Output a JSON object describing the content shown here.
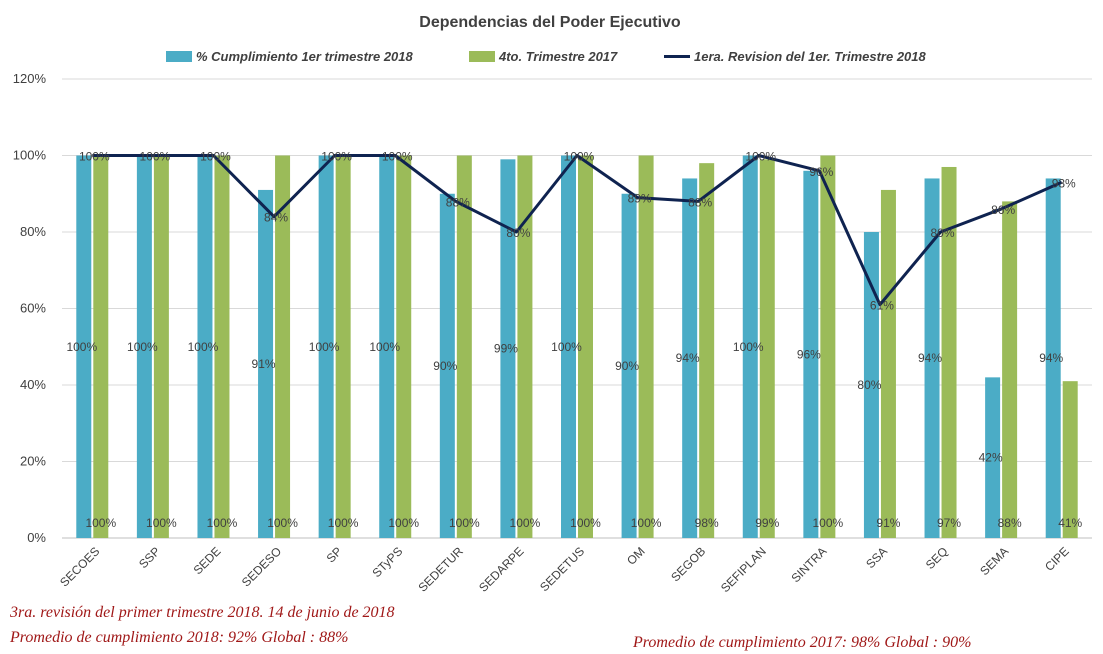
{
  "chart_data": {
    "type": "bar",
    "title": "Dependencias del Poder Ejecutivo",
    "xlabel": "",
    "ylabel": "",
    "ylim": [
      0,
      1.2
    ],
    "yticks": [
      0,
      0.2,
      0.4,
      0.6,
      0.8,
      1.0,
      1.2
    ],
    "ytick_labels": [
      "0%",
      "20%",
      "40%",
      "60%",
      "80%",
      "100%",
      "120%"
    ],
    "grid": true,
    "legend_position": "top",
    "categories": [
      "SECOES",
      "SSP",
      "SEDE",
      "SEDESO",
      "SP",
      "STyPS",
      "SEDETUR",
      "SEDARPE",
      "SEDETUS",
      "OM",
      "SEGOB",
      "SEFIPLAN",
      "SINTRA",
      "SSA",
      "SEQ",
      "SEMA",
      "CIPE"
    ],
    "series": [
      {
        "name": "% Cumplimiento 1er trimestre 2018",
        "kind": "bar",
        "color": "#4bacc6",
        "values": [
          1.0,
          1.0,
          1.0,
          0.91,
          1.0,
          1.0,
          0.9,
          0.99,
          1.0,
          0.9,
          0.94,
          1.0,
          0.96,
          0.8,
          0.94,
          0.42,
          0.94
        ],
        "labels": [
          "100%",
          "100%",
          "100%",
          "91%",
          "100%",
          "100%",
          "90%",
          "99%",
          "100%",
          "90%",
          "94%",
          "100%",
          "96%",
          "80%",
          "94%",
          "42%",
          "94%"
        ]
      },
      {
        "name": "4to. Trimestre 2017",
        "kind": "bar",
        "color": "#9bbb59",
        "values": [
          1.0,
          1.0,
          1.0,
          1.0,
          1.0,
          1.0,
          1.0,
          1.0,
          1.0,
          1.0,
          0.98,
          0.99,
          1.0,
          0.91,
          0.97,
          0.88,
          0.41
        ],
        "labels": [
          "100%",
          "100%",
          "100%",
          "100%",
          "100%",
          "100%",
          "100%",
          "100%",
          "100%",
          "100%",
          "98%",
          "99%",
          "100%",
          "91%",
          "97%",
          "88%",
          "41%"
        ]
      },
      {
        "name": "1era. Revision del 1er. Trimestre 2018",
        "kind": "line",
        "color": "#0f2350",
        "values": [
          1.0,
          1.0,
          1.0,
          0.84,
          1.0,
          1.0,
          0.88,
          0.8,
          1.0,
          0.89,
          0.88,
          1.0,
          0.96,
          0.61,
          0.8,
          0.86,
          0.93
        ],
        "labels": [
          "100%",
          "100%",
          "100%",
          "84%",
          "100%",
          "100%",
          "88%",
          "80%",
          "100%",
          "89%",
          "88%",
          "100%",
          "96%",
          "61%",
          "80%",
          "86%",
          "93%"
        ]
      }
    ]
  },
  "footnotes": {
    "line1": "3ra. revisión del primer trimestre 2018.     14 de junio de 2018",
    "line2": "Promedio de cumplimiento 2018: 92%     Global : 88%",
    "line3": "Promedio de cumplimiento 2017: 98%     Global : 90%"
  }
}
